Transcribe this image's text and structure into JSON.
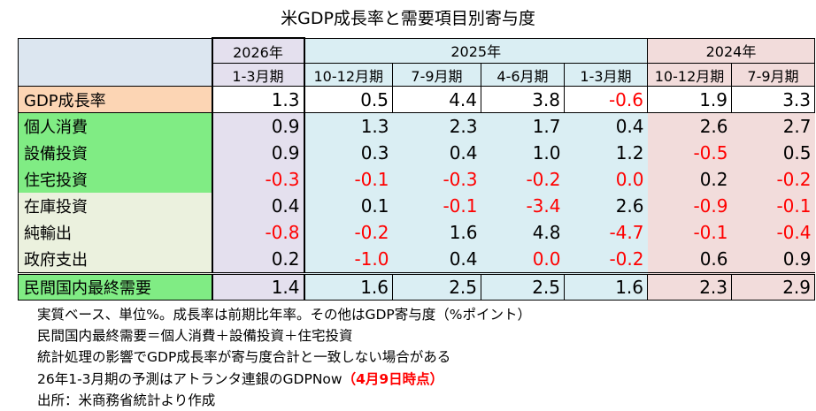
{
  "title": "米GDP成長率と需要項目別寄与度",
  "chart_data": {
    "type": "table",
    "year_headers": [
      {
        "label": "2026年",
        "span": 1,
        "group": "y26"
      },
      {
        "label": "2025年",
        "span": 4,
        "group": "y25"
      },
      {
        "label": "2024年",
        "span": 2,
        "group": "y24"
      }
    ],
    "quarters": [
      {
        "label": "1-3月期",
        "group": "y26"
      },
      {
        "label": "10-12月期",
        "group": "y25"
      },
      {
        "label": "7-9月期",
        "group": "y25"
      },
      {
        "label": "4-6月期",
        "group": "y25"
      },
      {
        "label": "1-3月期",
        "group": "y25"
      },
      {
        "label": "10-12月期",
        "group": "y24"
      },
      {
        "label": "7-9月期",
        "group": "y24"
      }
    ],
    "rows": [
      {
        "label": "GDP成長率",
        "style": "gdp",
        "values": [
          "1.3",
          "0.5",
          "4.4",
          "3.8",
          "-0.6",
          "1.9",
          "3.3"
        ]
      },
      {
        "label": "個人消費",
        "style": "green",
        "values": [
          "0.9",
          "1.3",
          "2.3",
          "1.7",
          "0.4",
          "2.6",
          "2.7"
        ]
      },
      {
        "label": "設備投資",
        "style": "green",
        "values": [
          "0.9",
          "0.3",
          "0.4",
          "1.0",
          "1.2",
          "-0.5",
          "0.5"
        ]
      },
      {
        "label": "住宅投資",
        "style": "green",
        "values": [
          "-0.3",
          "-0.1",
          "-0.3",
          "-0.2",
          "0.0",
          "0.2",
          "-0.2"
        ]
      },
      {
        "label": "在庫投資",
        "style": "beige",
        "values": [
          "0.4",
          "0.1",
          "-0.1",
          "-3.4",
          "2.6",
          "-0.9",
          "-0.1"
        ]
      },
      {
        "label": "純輸出",
        "style": "beige",
        "values": [
          "-0.8",
          "-0.2",
          "1.6",
          "4.8",
          "-4.7",
          "-0.1",
          "-0.4"
        ]
      },
      {
        "label": "政府支出",
        "style": "beige",
        "values": [
          "0.2",
          "-1.0",
          "0.4",
          "0.0",
          "-0.2",
          "0.6",
          "0.9"
        ]
      },
      {
        "label": "民間国内最終需要",
        "style": "final",
        "values": [
          "1.4",
          "1.6",
          "2.5",
          "2.5",
          "1.6",
          "2.3",
          "2.9"
        ]
      }
    ],
    "negative_color": "#ff0000",
    "red_values": [
      "-0.6",
      "-0.5",
      "-0.3",
      "-0.1",
      "-0.3",
      "-0.2",
      "0.0",
      "-0.2",
      "-0.1",
      "-3.4",
      "-0.9",
      "-0.1",
      "-0.8",
      "-0.2",
      "-4.7",
      "-0.1",
      "-0.4",
      "-1.0",
      "0.0",
      "-0.2"
    ]
  },
  "notes": [
    "実質ベース、単位%。成長率は前期比年率。その他はGDP寄与度（%ポイント）",
    "民間国内最終需要＝個人消費＋設備投資＋住宅投資",
    "統計処理の影響でGDP成長率が寄与度合計と一致しない場合がある"
  ],
  "note4": {
    "text": "26年1-3月期の予測はアトランタ連銀のGDPNow",
    "highlight": "（4月9日時点）"
  },
  "source": "出所：米商務省統計より作成",
  "colors": {
    "header": "#dce6f0",
    "col2026": "#e4e0ee",
    "col2025": "#daeef3",
    "col2024": "#f2dcdb",
    "gdp_label": "#fcd5b4",
    "green_label": "#80ec84",
    "beige_label": "#ebf1de"
  }
}
